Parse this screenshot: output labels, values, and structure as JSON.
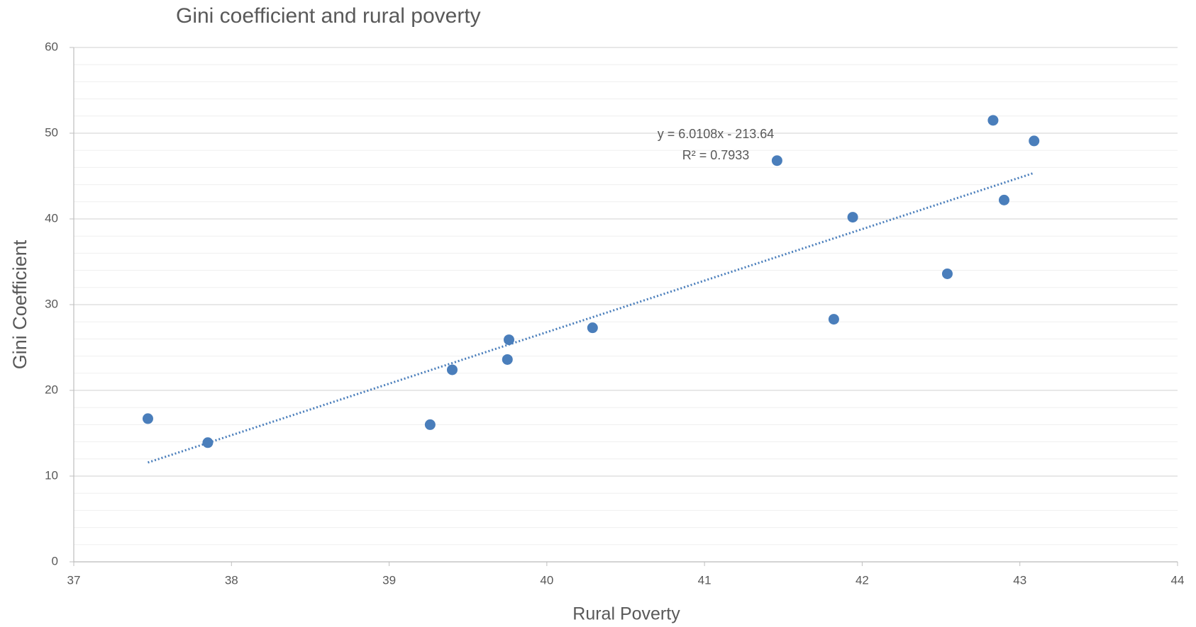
{
  "chart_data": {
    "type": "scatter",
    "title": "Gini coefficient and rural poverty",
    "x_label": "Rural Poverty",
    "y_label": "Gini Coefficient",
    "series": [
      {
        "name": "Gini Coefficient",
        "color": "#4a7ebb",
        "x": [
          37.47,
          37.85,
          39.26,
          39.4,
          39.75,
          39.76,
          40.29,
          41.46,
          41.82,
          41.94,
          42.54,
          42.83,
          42.9,
          43.09
        ],
        "values": [
          16.7,
          13.9,
          16.0,
          22.4,
          23.6,
          25.9,
          27.3,
          46.8,
          28.3,
          40.2,
          33.6,
          51.5,
          42.2,
          49.1
        ]
      }
    ],
    "trendline": {
      "slope": 6.0108,
      "intercept": -213.64,
      "equation": "y = 6.0108x - 213.64",
      "r2": "R² = 0.7933",
      "color": "#4a7ebb"
    },
    "xlim": [
      37,
      44
    ],
    "xticks": [
      37,
      38,
      39,
      40,
      41,
      42,
      43,
      44
    ],
    "ylim": [
      0,
      60
    ],
    "yticks": [
      0,
      10,
      20,
      30,
      40,
      50,
      60
    ],
    "grid": true,
    "minor_grid_step": 2
  }
}
